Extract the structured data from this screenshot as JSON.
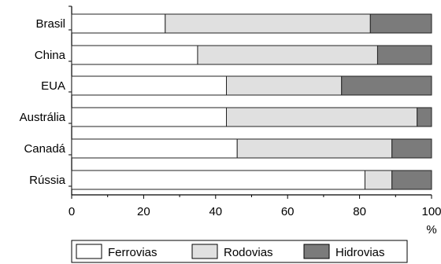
{
  "chart_data": {
    "type": "bar",
    "orientation": "horizontal",
    "stacked": true,
    "categories": [
      "Brasil",
      "China",
      "EUA",
      "Austrália",
      "Canadá",
      "Rússia"
    ],
    "series": [
      {
        "name": "Ferrovias",
        "color": "#ffffff",
        "values": [
          26,
          35,
          43,
          43,
          46,
          81.5
        ]
      },
      {
        "name": "Rodovias",
        "color": "#e0e0e0",
        "values": [
          57,
          50,
          32,
          53,
          43,
          7.5
        ]
      },
      {
        "name": "Hidrovias",
        "color": "#7b7b7b",
        "values": [
          17,
          15,
          25,
          4,
          11,
          11
        ]
      }
    ],
    "xticks": [
      "0",
      "20",
      "40",
      "60",
      "80",
      "100"
    ],
    "xlim": [
      0,
      100
    ],
    "unit_label": "%",
    "legend_position": "bottom",
    "grid": false
  }
}
